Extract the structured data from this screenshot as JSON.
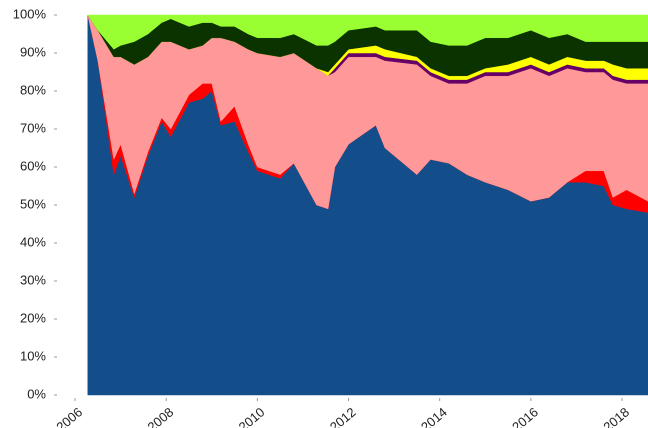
{
  "chart_data": {
    "type": "stacked-area-percent",
    "x": [
      2006.28,
      2006.5,
      2006.85,
      2007.0,
      2007.3,
      2007.6,
      2007.9,
      2008.1,
      2008.5,
      2008.8,
      2009.0,
      2009.2,
      2009.5,
      2009.8,
      2010.0,
      2010.5,
      2010.8,
      2011.3,
      2011.55,
      2011.7,
      2012.0,
      2012.6,
      2012.8,
      2013.5,
      2013.8,
      2014.2,
      2014.6,
      2015.0,
      2015.5,
      2016.0,
      2016.4,
      2016.8,
      2017.2,
      2017.6,
      2017.8,
      2018.1,
      2018.57
    ],
    "series": [
      {
        "color": "#134e8a",
        "values": [
          100,
          88,
          58,
          63,
          52,
          63,
          72,
          68,
          77,
          78,
          80,
          71,
          72,
          64,
          59,
          57,
          61,
          50,
          49,
          60,
          66,
          71,
          65,
          58,
          62,
          61,
          58,
          56,
          54,
          51,
          52,
          56,
          56,
          55,
          50,
          49,
          48
        ]
      },
      {
        "color": "#ff0000",
        "values": [
          0,
          0,
          4,
          3,
          1,
          1,
          1,
          2,
          2,
          4,
          2,
          1,
          4,
          2,
          1,
          1,
          0,
          0,
          0,
          0,
          0,
          0,
          0,
          0,
          0,
          0,
          0,
          0,
          0,
          0,
          0,
          0,
          3,
          4,
          2,
          5,
          3
        ]
      },
      {
        "color": "#ff9999",
        "values": [
          0,
          8,
          27,
          23,
          34,
          25,
          20,
          23,
          12,
          10,
          12,
          22,
          17,
          25,
          30,
          31,
          29,
          36,
          35,
          25,
          23,
          18,
          23,
          29,
          22,
          21,
          24,
          28,
          30,
          35,
          32,
          30,
          26,
          26,
          31,
          28,
          31
        ]
      },
      {
        "color": "#660066",
        "values": [
          0,
          0,
          0,
          0,
          0,
          0,
          0,
          0,
          0,
          0,
          0,
          0,
          0,
          0,
          0,
          0,
          0,
          0,
          0,
          1,
          1,
          1,
          1,
          1,
          1,
          1,
          1,
          1,
          1,
          1,
          1,
          1,
          1,
          1,
          1,
          1,
          1
        ]
      },
      {
        "color": "#ffff00",
        "values": [
          0,
          0,
          0,
          0,
          0,
          0,
          0,
          0,
          0,
          0,
          0,
          0,
          0,
          0,
          0,
          0,
          0,
          0,
          1,
          1,
          1,
          2,
          2,
          1,
          1,
          1,
          1,
          1,
          2,
          2,
          2,
          2,
          2,
          2,
          3,
          3,
          3
        ]
      },
      {
        "color": "#0a3300",
        "values": [
          0,
          0,
          2,
          3,
          6,
          6,
          5,
          6,
          6,
          6,
          4,
          3,
          4,
          4,
          4,
          5,
          5,
          6,
          7,
          6,
          5,
          5,
          5,
          7,
          7,
          8,
          8,
          8,
          7,
          7,
          7,
          6,
          5,
          5,
          6,
          7,
          7
        ]
      },
      {
        "color": "#99ff33",
        "values": [
          0,
          4,
          9,
          8,
          7,
          5,
          2,
          1,
          3,
          2,
          2,
          3,
          3,
          5,
          6,
          6,
          5,
          8,
          8,
          7,
          4,
          3,
          4,
          4,
          7,
          8,
          8,
          6,
          6,
          4,
          6,
          5,
          7,
          7,
          7,
          7,
          7
        ]
      }
    ],
    "xlim": [
      2005.67,
      2018.57
    ],
    "xticks": [
      2006,
      2008,
      2010,
      2012,
      2014,
      2016,
      2018
    ],
    "ylim": [
      0,
      100
    ],
    "yticks": [
      {
        "value": 0,
        "label": "0%"
      },
      {
        "value": 10,
        "label": "10%"
      },
      {
        "value": 20,
        "label": "20%"
      },
      {
        "value": 30,
        "label": "30%"
      },
      {
        "value": 40,
        "label": "40%"
      },
      {
        "value": 50,
        "label": "50%"
      },
      {
        "value": 60,
        "label": "60%"
      },
      {
        "value": 70,
        "label": "70%"
      },
      {
        "value": 80,
        "label": "80%"
      },
      {
        "value": 90,
        "label": "90%"
      },
      {
        "value": {
          "x": 0
        },
        "label": "100%"
      }
    ]
  }
}
